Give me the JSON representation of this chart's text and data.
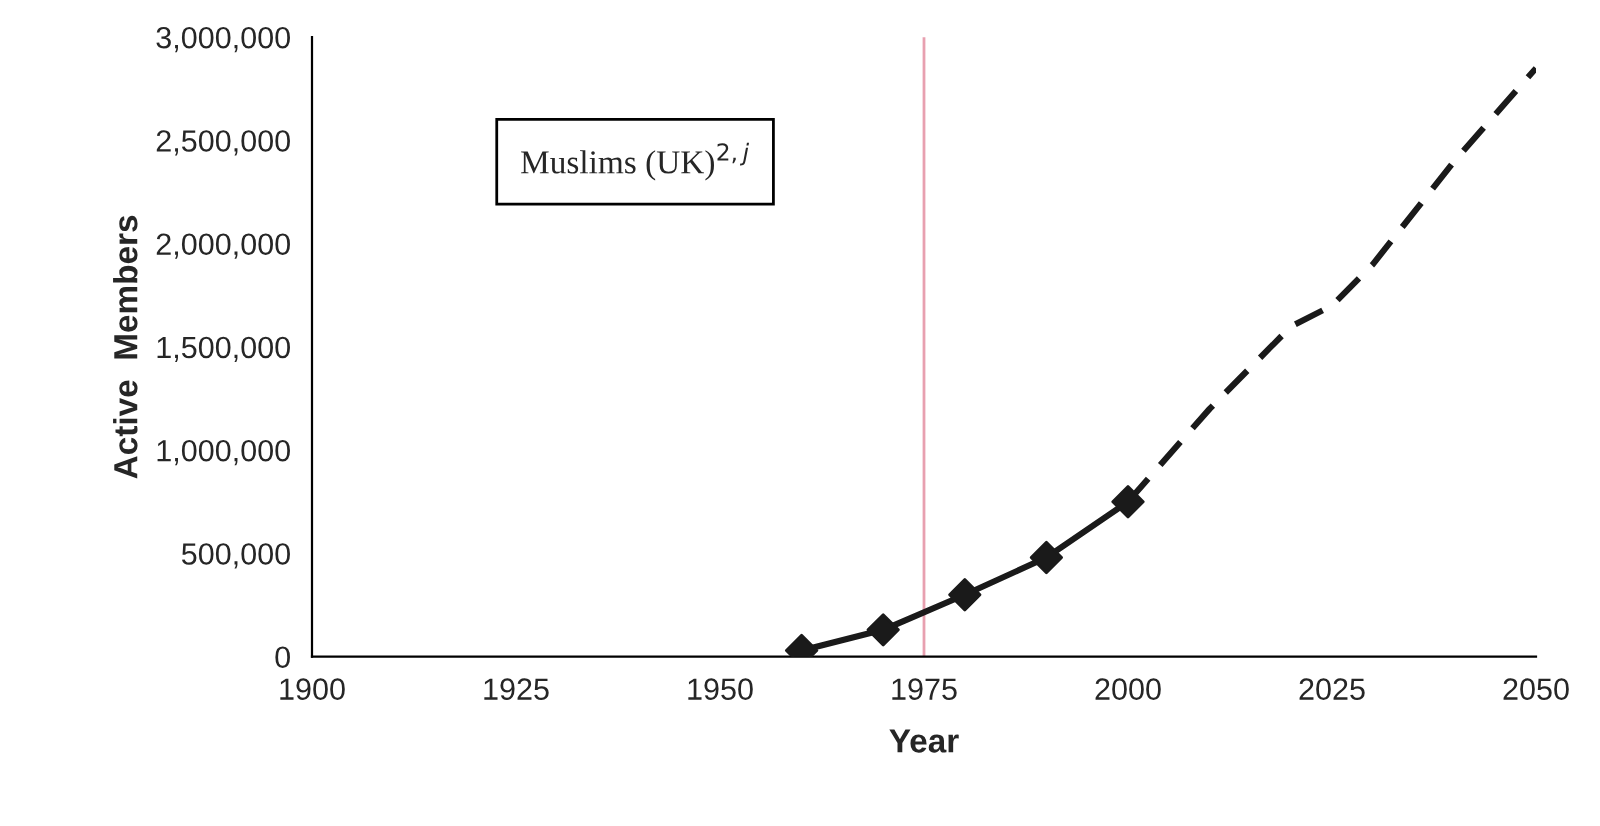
{
  "chart_data": {
    "type": "line",
    "xlabel": "Year",
    "ylabel": "Active  Members",
    "annotations": [
      "Muslims (UK)$^{2,j}$"
    ],
    "series": [
      {
        "color": "#1a1a1a",
        "x": [
          1960,
          1970,
          1980,
          1990,
          2000
        ],
        "values": [
          30000,
          130000,
          300000,
          480000,
          750000
        ],
        "marker": "diamond",
        "line_style": "solid"
      },
      {
        "color": "#1a1a1a",
        "x": [
          2000,
          2010,
          2020,
          2025,
          2030,
          2040,
          2050
        ],
        "values": [
          750000,
          1200000,
          1600000,
          1700000,
          1900000,
          2400000,
          2850000
        ],
        "marker": "none",
        "line_style": "dashed"
      }
    ],
    "xlim": [
      1900,
      2050
    ],
    "xticks": [
      1900,
      1925,
      1950,
      1975,
      2000,
      2025,
      2050
    ],
    "ylim": [
      0,
      3000000
    ],
    "yticks": [
      0,
      {
        "value": 500000,
        "label": "500,000"
      },
      {
        "value": 1000000,
        "label": "1,000,000"
      },
      {
        "value": 1500000,
        "label": "1,500,000"
      },
      {
        "value": 2000000,
        "label": "2,000,000"
      },
      {
        "value": 2500000,
        "label": "2,500,000"
      },
      {
        "value": 3000000,
        "label": "3,000,000"
      }
    ],
    "ref_lines": [
      {
        "axis": "x",
        "value": 1975,
        "color": "#e8a0b0",
        "line_style": "solid"
      }
    ],
    "grid": false,
    "legend": false
  }
}
